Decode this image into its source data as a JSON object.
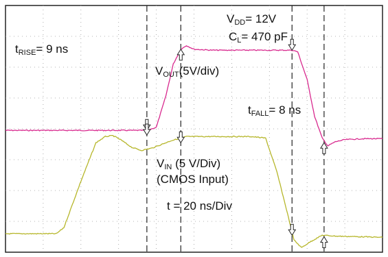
{
  "chart_data": {
    "type": "line",
    "x_range": [
      0,
      10
    ],
    "y_range": [
      -4,
      4
    ],
    "grid": true,
    "series": [
      {
        "name": "VOUT",
        "color": "#d8298e",
        "x": [
          0,
          3.75,
          4.0,
          4.25,
          4.45,
          4.65,
          4.8,
          5.0,
          5.5,
          6.5,
          7.6,
          7.75,
          8.0,
          8.2,
          8.4,
          8.55,
          8.75,
          9.0,
          9.5,
          10
        ],
        "y": [
          -0.05,
          -0.05,
          0.05,
          1.05,
          2.1,
          2.58,
          2.7,
          2.58,
          2.55,
          2.55,
          2.55,
          2.5,
          1.6,
          0.4,
          -0.3,
          -0.55,
          -0.42,
          -0.35,
          -0.32,
          -0.32
        ]
      },
      {
        "name": "VIN",
        "color": "#b6b62a",
        "x": [
          0,
          1.35,
          1.55,
          2.0,
          2.4,
          2.65,
          2.85,
          3.05,
          3.35,
          3.6,
          3.9,
          4.4,
          4.8,
          5.5,
          6.5,
          6.9,
          7.2,
          7.45,
          7.65,
          7.85,
          8.1,
          8.4,
          8.8,
          9.5,
          10
        ],
        "y": [
          -3.4,
          -3.4,
          -3.2,
          -1.7,
          -0.45,
          -0.25,
          -0.22,
          -0.35,
          -0.6,
          -0.7,
          -0.62,
          -0.38,
          -0.25,
          -0.25,
          -0.25,
          -0.3,
          -1.4,
          -2.6,
          -3.6,
          -3.85,
          -3.65,
          -3.45,
          -3.48,
          -3.5,
          -3.52
        ]
      }
    ],
    "annotations": [
      {
        "key": "vdd",
        "base": "V",
        "sub": "DD",
        "rest": "= 12V"
      },
      {
        "key": "cl",
        "base": "C",
        "sub": "L",
        "rest": "= 470 pF"
      },
      {
        "key": "trise",
        "base": "t",
        "sub": "RISE",
        "rest": "= 9 ns"
      },
      {
        "key": "vout",
        "base": "V",
        "sub": "OUT",
        "rest": "(5V/div)"
      },
      {
        "key": "tfall",
        "base": "t",
        "sub": "FALL",
        "rest": "= 8 ns"
      },
      {
        "key": "vin",
        "base": "V",
        "sub": "IN",
        "rest": " (5 V/Div)"
      },
      {
        "key": "cmos",
        "base": "(CMOS Input)",
        "sub": "",
        "rest": ""
      },
      {
        "key": "tdiv",
        "base": "t = 20 ns/Div",
        "sub": "",
        "rest": ""
      }
    ],
    "cursors": [
      3.75,
      4.65,
      7.6,
      8.45
    ],
    "markers": [
      {
        "x": 3.75,
        "y": -0.05,
        "dir": "down"
      },
      {
        "x": 4.65,
        "y": 2.58,
        "dir": "up"
      },
      {
        "x": 7.6,
        "y": 2.55,
        "dir": "down"
      },
      {
        "x": 8.45,
        "y": -0.45,
        "dir": "up"
      },
      {
        "x": 3.75,
        "y": -0.2,
        "dir": "down"
      },
      {
        "x": 4.65,
        "y": -0.45,
        "dir": "down"
      },
      {
        "x": 7.6,
        "y": -3.45,
        "dir": "down"
      },
      {
        "x": 8.45,
        "y": -3.5,
        "dir": "up"
      }
    ]
  }
}
